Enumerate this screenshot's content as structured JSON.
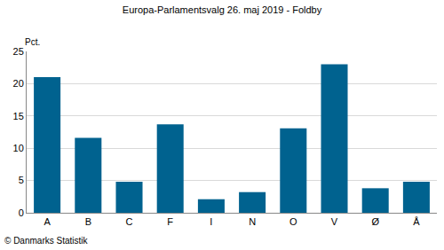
{
  "chart_data": {
    "type": "bar",
    "title": "Europa-Parlamentsvalg 26. maj 2019 - Foldby",
    "y_label": "Pct.",
    "categories": [
      "A",
      "B",
      "C",
      "F",
      "I",
      "N",
      "O",
      "V",
      "Ø",
      "Å"
    ],
    "values": [
      21,
      11.6,
      4.8,
      13.7,
      2.1,
      3.2,
      13.1,
      23,
      3.8,
      4.8
    ],
    "color": "#00628f",
    "ylim": [
      0,
      25
    ],
    "yticks": [
      0,
      5,
      10,
      15,
      20,
      25
    ],
    "grid": true,
    "annotations": [
      "© Danmarks Statistik"
    ]
  }
}
